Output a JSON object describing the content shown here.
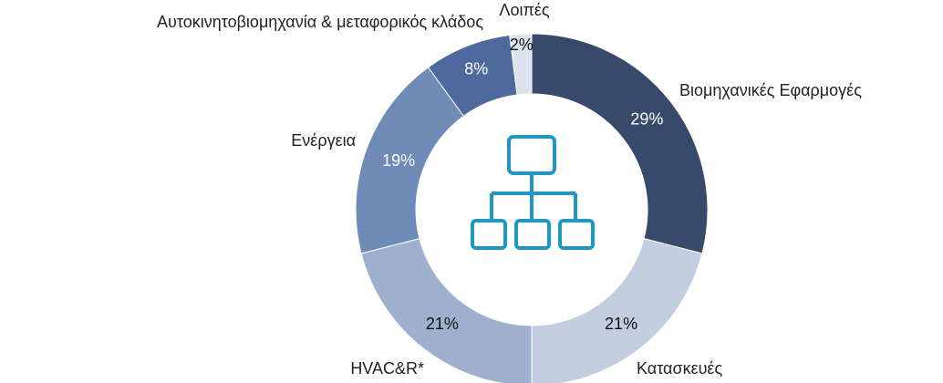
{
  "chart_data": {
    "type": "donut",
    "categories": [
      "Βιομηχανικές Εφαρμογές",
      "Κατασκευές",
      "HVAC&R*",
      "Ενέργεια",
      "Αυτοκινητοβιομηχανία & μεταφορικός κλάδος",
      "Λοιπές"
    ],
    "values": [
      29,
      21,
      21,
      19,
      8,
      2
    ],
    "value_labels": [
      "29%",
      "21%",
      "21%",
      "19%",
      "8%",
      "2%"
    ],
    "colors": [
      "#374a6b",
      "#c3cde0",
      "#9fb0cf",
      "#6f8bb8",
      "#4e6a9c",
      "#dce3ef"
    ]
  }
}
